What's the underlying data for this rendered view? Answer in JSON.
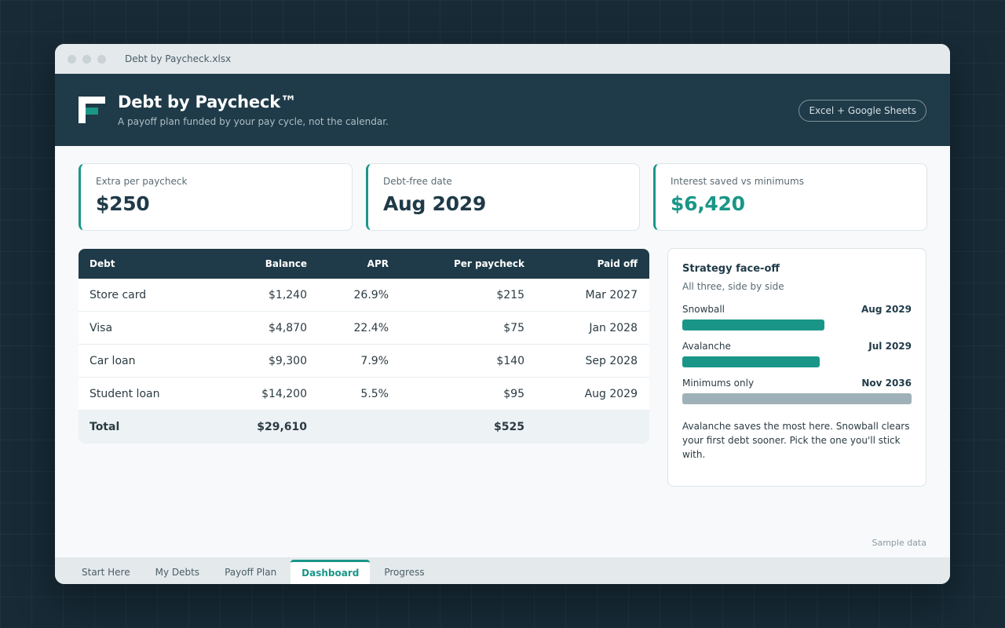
{
  "window": {
    "file_name": "Debt by Paycheck.xlsx"
  },
  "header": {
    "title": "Debt by Paycheck™",
    "subtitle": "A payoff plan funded by your pay cycle, not the calendar.",
    "platform_badge": "Excel + Google Sheets"
  },
  "kpis": [
    {
      "label": "Extra per paycheck",
      "value": "$250"
    },
    {
      "label": "Debt-free date",
      "value": "Aug 2029"
    },
    {
      "label": "Interest saved vs minimums",
      "value": "$6,420"
    }
  ],
  "table": {
    "columns": [
      "Debt",
      "Balance",
      "APR",
      "Per paycheck",
      "Paid off"
    ],
    "rows": [
      [
        "Store card",
        "$1,240",
        "26.9%",
        "$215",
        "Mar 2027"
      ],
      [
        "Visa",
        "$4,870",
        "22.4%",
        "$75",
        "Jan 2028"
      ],
      [
        "Car loan",
        "$9,300",
        "7.9%",
        "$140",
        "Sep 2028"
      ],
      [
        "Student loan",
        "$14,200",
        "5.5%",
        "$95",
        "Aug 2029"
      ]
    ],
    "total": [
      "Total",
      "$29,610",
      "",
      "$525",
      ""
    ]
  },
  "strategy": {
    "title": "Strategy face-off",
    "subtitle": "All three, side by side",
    "options": [
      {
        "name": "Snowball",
        "date": "Aug 2029",
        "fill_fraction": 0.62
      },
      {
        "name": "Avalanche",
        "date": "Jul 2029",
        "fill_fraction": 0.6
      },
      {
        "name": "Minimums only",
        "date": "Nov 2036",
        "fill_fraction": 1.0
      }
    ],
    "note": "Avalanche saves the most here. Snowball clears your first debt sooner. Pick the one you'll stick with."
  },
  "footer": {
    "sample_label": "Sample data"
  },
  "sheet_tabs": [
    "Start Here",
    "My Debts",
    "Payoff Plan",
    "Dashboard",
    "Progress"
  ],
  "active_tab": "Dashboard",
  "colors": {
    "accent": "#1a9688",
    "navy": "#1f3a48",
    "muted_bar": "#9fb1b8"
  }
}
